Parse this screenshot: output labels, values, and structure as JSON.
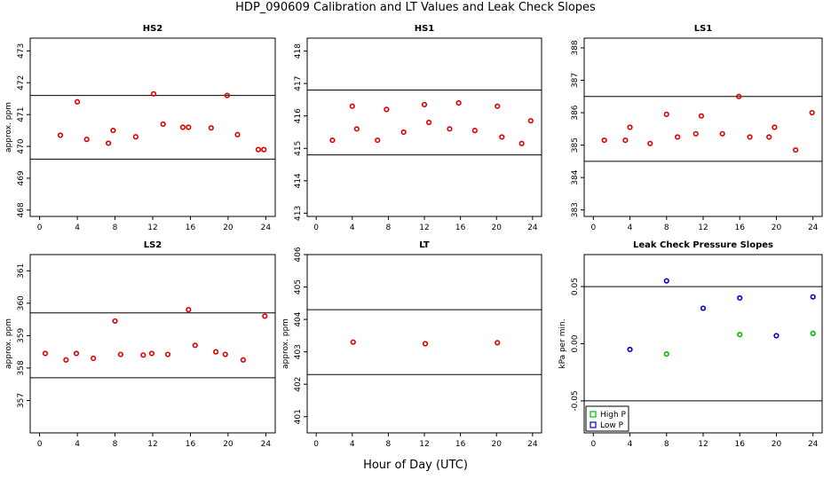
{
  "title": "HDP_090609  Calibration and LT Values and Leak Check Slopes",
  "common_xlabel": "Hour of Day (UTC)",
  "colors": {
    "red": "#dd0000",
    "green": "#00bb00",
    "blue": "#0000cc",
    "axis": "#000000"
  },
  "chart_data": [
    {
      "type": "scatter",
      "title": "HS2",
      "ylabel": "approx. ppm",
      "xlim": [
        -1,
        25
      ],
      "ylim": [
        467.8,
        473.4
      ],
      "xticks": [
        0,
        4,
        8,
        12,
        16,
        20,
        24
      ],
      "yticks": [
        468,
        469,
        470,
        471,
        472,
        473
      ],
      "hlines": [
        471.6,
        469.6
      ],
      "series": [
        {
          "color": "red",
          "x": [
            2.2,
            4.0,
            5.0,
            7.3,
            7.8,
            10.2,
            12.1,
            13.1,
            15.2,
            15.8,
            18.2,
            19.9,
            21.0,
            23.2,
            23.8
          ],
          "y": [
            470.35,
            471.4,
            470.22,
            470.1,
            470.5,
            470.3,
            471.65,
            470.7,
            470.6,
            470.6,
            470.58,
            471.6,
            470.37,
            469.9,
            469.9
          ]
        }
      ]
    },
    {
      "type": "scatter",
      "title": "HS1",
      "ylabel": "",
      "xlim": [
        -1,
        25
      ],
      "ylim": [
        412.9,
        418.4
      ],
      "xticks": [
        0,
        4,
        8,
        12,
        16,
        20,
        24
      ],
      "yticks": [
        413,
        414,
        415,
        416,
        417,
        418
      ],
      "hlines": [
        416.8,
        414.8
      ],
      "series": [
        {
          "color": "red",
          "x": [
            1.8,
            4.0,
            4.5,
            6.8,
            7.8,
            9.7,
            12.0,
            12.5,
            14.8,
            15.8,
            17.6,
            20.1,
            20.6,
            22.8,
            23.8
          ],
          "y": [
            415.25,
            416.3,
            415.6,
            415.25,
            416.2,
            415.5,
            416.35,
            415.8,
            415.6,
            416.4,
            415.55,
            416.3,
            415.35,
            415.15,
            415.85
          ]
        }
      ]
    },
    {
      "type": "scatter",
      "title": "LS1",
      "ylabel": "",
      "xlim": [
        -1,
        25
      ],
      "ylim": [
        382.8,
        388.3
      ],
      "xticks": [
        0,
        4,
        8,
        12,
        16,
        20,
        24
      ],
      "yticks": [
        383,
        384,
        385,
        386,
        387,
        388
      ],
      "hlines": [
        386.5,
        384.5
      ],
      "series": [
        {
          "color": "red",
          "x": [
            1.2,
            3.5,
            4.0,
            6.2,
            8.0,
            9.2,
            11.2,
            11.8,
            14.1,
            15.9,
            17.1,
            19.2,
            19.8,
            22.1,
            23.9
          ],
          "y": [
            385.15,
            385.15,
            385.55,
            385.05,
            385.95,
            385.25,
            385.35,
            385.9,
            385.35,
            386.5,
            385.25,
            385.25,
            385.55,
            384.85,
            386.0
          ]
        }
      ]
    },
    {
      "type": "scatter",
      "title": "LS2",
      "ylabel": "approx. ppm",
      "xlim": [
        -1,
        25
      ],
      "ylim": [
        356.0,
        361.5
      ],
      "xticks": [
        0,
        4,
        8,
        12,
        16,
        20,
        24
      ],
      "yticks": [
        357,
        358,
        359,
        360,
        361
      ],
      "hlines": [
        359.7,
        357.7
      ],
      "series": [
        {
          "color": "red",
          "x": [
            0.6,
            2.8,
            3.9,
            5.7,
            8.0,
            8.6,
            11.0,
            11.9,
            13.6,
            15.8,
            16.5,
            18.7,
            19.7,
            21.6,
            23.9
          ],
          "y": [
            358.45,
            358.25,
            358.45,
            358.3,
            359.45,
            358.42,
            358.4,
            358.45,
            358.42,
            359.8,
            358.7,
            358.5,
            358.42,
            358.25,
            359.6
          ]
        }
      ]
    },
    {
      "type": "scatter",
      "title": "LT",
      "ylabel": "approx. ppm",
      "xlim": [
        -1,
        25
      ],
      "ylim": [
        400.5,
        406.0
      ],
      "xticks": [
        0,
        4,
        8,
        12,
        16,
        20,
        24
      ],
      "yticks": [
        401,
        402,
        403,
        404,
        405,
        406
      ],
      "hlines": [
        404.3,
        402.3
      ],
      "series": [
        {
          "color": "red",
          "x": [
            4.1,
            12.1,
            20.1
          ],
          "y": [
            403.3,
            403.25,
            403.28
          ]
        }
      ]
    },
    {
      "type": "scatter",
      "title": "Leak Check Pressure Slopes",
      "ylabel": "kPa per min.",
      "xlim": [
        -1,
        25
      ],
      "ylim": [
        -0.078,
        0.078
      ],
      "xticks": [
        0,
        4,
        8,
        12,
        16,
        20,
        24
      ],
      "yticks": [
        -0.05,
        0.0,
        0.05
      ],
      "ytick_labels": [
        "-0.05",
        "0.00",
        "0.05"
      ],
      "hlines": [
        0.05,
        -0.05
      ],
      "legend": {
        "position": "bottom-left",
        "entries": [
          {
            "name": "High P",
            "color": "green"
          },
          {
            "name": "Low P",
            "color": "blue"
          }
        ]
      },
      "series": [
        {
          "name": "High P",
          "color": "green",
          "x": [
            8.0,
            16.0,
            24.0
          ],
          "y": [
            -0.009,
            0.008,
            0.009
          ]
        },
        {
          "name": "Low P",
          "color": "blue",
          "x": [
            4.0,
            8.0,
            12.0,
            16.0,
            20.0,
            24.0
          ],
          "y": [
            -0.005,
            0.055,
            0.031,
            0.04,
            0.007,
            0.041
          ]
        }
      ]
    }
  ]
}
